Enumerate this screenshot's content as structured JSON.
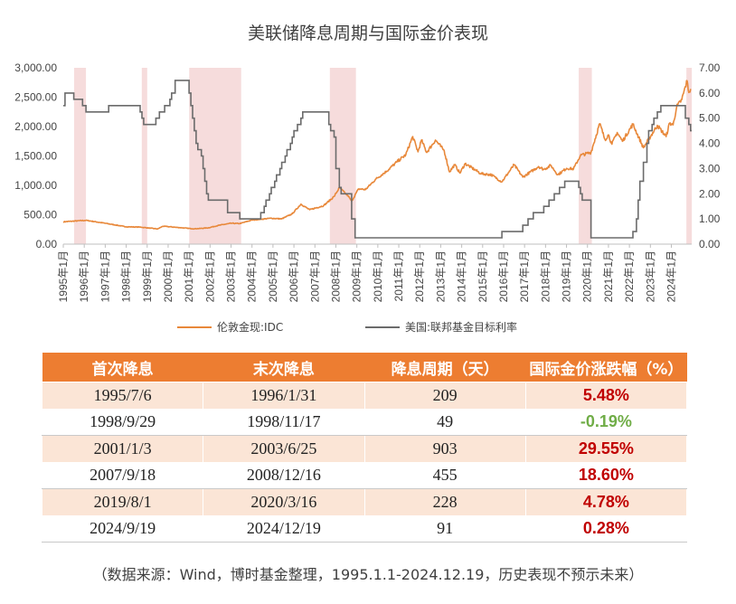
{
  "title": "美联储降息周期与国际金价表现",
  "chart_data": {
    "type": "line",
    "title": "美联储降息周期与国际金价表现",
    "x_range": [
      "1995-01",
      "2024-12"
    ],
    "x_tick_labels": [
      "1995年1月",
      "1996年1月",
      "1997年1月",
      "1998年1月",
      "1999年1月",
      "2000年1月",
      "2001年1月",
      "2002年1月",
      "2003年1月",
      "2004年1月",
      "2005年1月",
      "2006年1月",
      "2007年1月",
      "2008年1月",
      "2009年1月",
      "2010年1月",
      "2011年1月",
      "2012年1月",
      "2013年1月",
      "2014年1月",
      "2015年1月",
      "2016年1月",
      "2017年1月",
      "2018年1月",
      "2019年1月",
      "2020年1月",
      "2021年1月",
      "2022年1月",
      "2023年1月",
      "2024年1月"
    ],
    "left_axis": {
      "ylim": [
        0,
        3000
      ],
      "tick_labels": [
        "3,000.00",
        "2,500.00",
        "2,000.00",
        "1,500.00",
        "1,000.00",
        "500.00",
        "0.00"
      ]
    },
    "right_axis": {
      "ylim": [
        0,
        7
      ],
      "tick_labels": [
        "7.00",
        "6.00",
        "5.00",
        "4.00",
        "3.00",
        "2.00",
        "1.00",
        "0.00"
      ]
    },
    "shaded_periods": [
      [
        "1995-07-06",
        "1996-01-31"
      ],
      [
        "1998-09-29",
        "1998-11-17"
      ],
      [
        "2001-01-03",
        "2003-06-25"
      ],
      [
        "2007-09-18",
        "2008-12-16"
      ],
      [
        "2019-08-01",
        "2020-03-16"
      ],
      [
        "2024-09-19",
        "2024-12-19"
      ]
    ],
    "shade_color": "#f6dcdc",
    "series": [
      {
        "name": "伦敦金现:IDC",
        "axis": "left",
        "color": "#e8883a",
        "points": [
          [
            "1995-01",
            380
          ],
          [
            "1996-02",
            405
          ],
          [
            "1997-01",
            355
          ],
          [
            "1997-07",
            325
          ],
          [
            "1998-01",
            295
          ],
          [
            "1998-09",
            290
          ],
          [
            "1999-07",
            258
          ],
          [
            "1999-10",
            305
          ],
          [
            "2000-06",
            285
          ],
          [
            "2001-04",
            260
          ],
          [
            "2001-12",
            277
          ],
          [
            "2002-06",
            320
          ],
          [
            "2003-01",
            355
          ],
          [
            "2003-06",
            350
          ],
          [
            "2004-01",
            410
          ],
          [
            "2004-12",
            440
          ],
          [
            "2005-06",
            430
          ],
          [
            "2005-12",
            515
          ],
          [
            "2006-05",
            680
          ],
          [
            "2006-10",
            585
          ],
          [
            "2007-06",
            655
          ],
          [
            "2007-12",
            810
          ],
          [
            "2008-03",
            960
          ],
          [
            "2008-08",
            820
          ],
          [
            "2008-10",
            730
          ],
          [
            "2009-02",
            940
          ],
          [
            "2009-06",
            930
          ],
          [
            "2009-12",
            1110
          ],
          [
            "2010-06",
            1240
          ],
          [
            "2010-12",
            1400
          ],
          [
            "2011-05",
            1520
          ],
          [
            "2011-09",
            1830
          ],
          [
            "2011-12",
            1570
          ],
          [
            "2012-02",
            1770
          ],
          [
            "2012-05",
            1560
          ],
          [
            "2012-10",
            1770
          ],
          [
            "2013-03",
            1590
          ],
          [
            "2013-06",
            1230
          ],
          [
            "2013-09",
            1350
          ],
          [
            "2013-12",
            1210
          ],
          [
            "2014-03",
            1370
          ],
          [
            "2014-12",
            1200
          ],
          [
            "2015-06",
            1180
          ],
          [
            "2015-12",
            1060
          ],
          [
            "2016-07",
            1350
          ],
          [
            "2016-12",
            1140
          ],
          [
            "2017-09",
            1320
          ],
          [
            "2017-12",
            1270
          ],
          [
            "2018-04",
            1340
          ],
          [
            "2018-08",
            1180
          ],
          [
            "2019-01",
            1290
          ],
          [
            "2019-05",
            1280
          ],
          [
            "2019-09",
            1510
          ],
          [
            "2020-03",
            1560
          ],
          [
            "2020-08",
            2050
          ],
          [
            "2020-11",
            1780
          ],
          [
            "2021-01",
            1860
          ],
          [
            "2021-03",
            1700
          ],
          [
            "2021-06",
            1900
          ],
          [
            "2021-09",
            1750
          ],
          [
            "2022-03",
            2040
          ],
          [
            "2022-09",
            1640
          ],
          [
            "2023-05",
            2020
          ],
          [
            "2023-10",
            1830
          ],
          [
            "2023-12",
            2060
          ],
          [
            "2024-02",
            2030
          ],
          [
            "2024-04",
            2330
          ],
          [
            "2024-07",
            2460
          ],
          [
            "2024-10",
            2780
          ],
          [
            "2024-11",
            2580
          ],
          [
            "2024-12",
            2640
          ]
        ]
      },
      {
        "name": "美国:联邦基金目标利率",
        "axis": "right",
        "color": "#6b6b6b",
        "step_points": [
          [
            "1995-01",
            5.5
          ],
          [
            "1995-02",
            6.0
          ],
          [
            "1995-07",
            5.75
          ],
          [
            "1995-12",
            5.5
          ],
          [
            "1996-02",
            5.25
          ],
          [
            "1997-03",
            5.5
          ],
          [
            "1998-09",
            5.25
          ],
          [
            "1998-10",
            5.0
          ],
          [
            "1998-11",
            4.75
          ],
          [
            "1999-06",
            5.0
          ],
          [
            "1999-08",
            5.25
          ],
          [
            "1999-11",
            5.5
          ],
          [
            "2000-02",
            5.75
          ],
          [
            "2000-03",
            6.0
          ],
          [
            "2000-05",
            6.5
          ],
          [
            "2001-01",
            6.0
          ],
          [
            "2001-02",
            5.5
          ],
          [
            "2001-03",
            5.0
          ],
          [
            "2001-04",
            4.5
          ],
          [
            "2001-05",
            4.0
          ],
          [
            "2001-06",
            3.75
          ],
          [
            "2001-08",
            3.5
          ],
          [
            "2001-09",
            3.0
          ],
          [
            "2001-10",
            2.5
          ],
          [
            "2001-11",
            2.0
          ],
          [
            "2001-12",
            1.75
          ],
          [
            "2002-11",
            1.25
          ],
          [
            "2003-06",
            1.0
          ],
          [
            "2004-06",
            1.25
          ],
          [
            "2004-08",
            1.5
          ],
          [
            "2004-09",
            1.75
          ],
          [
            "2004-11",
            2.0
          ],
          [
            "2004-12",
            2.25
          ],
          [
            "2005-02",
            2.5
          ],
          [
            "2005-03",
            2.75
          ],
          [
            "2005-05",
            3.0
          ],
          [
            "2005-06",
            3.25
          ],
          [
            "2005-08",
            3.5
          ],
          [
            "2005-09",
            3.75
          ],
          [
            "2005-11",
            4.0
          ],
          [
            "2005-12",
            4.25
          ],
          [
            "2006-01",
            4.5
          ],
          [
            "2006-03",
            4.75
          ],
          [
            "2006-05",
            5.0
          ],
          [
            "2006-06",
            5.25
          ],
          [
            "2007-09",
            4.75
          ],
          [
            "2007-10",
            4.5
          ],
          [
            "2007-12",
            4.25
          ],
          [
            "2008-01",
            3.0
          ],
          [
            "2008-03",
            2.25
          ],
          [
            "2008-04",
            2.0
          ],
          [
            "2008-10",
            1.0
          ],
          [
            "2008-12",
            0.25
          ],
          [
            "2015-12",
            0.5
          ],
          [
            "2016-12",
            0.75
          ],
          [
            "2017-03",
            1.0
          ],
          [
            "2017-06",
            1.25
          ],
          [
            "2017-12",
            1.5
          ],
          [
            "2018-03",
            1.75
          ],
          [
            "2018-06",
            2.0
          ],
          [
            "2018-09",
            2.25
          ],
          [
            "2018-12",
            2.5
          ],
          [
            "2019-08",
            2.25
          ],
          [
            "2019-09",
            2.0
          ],
          [
            "2019-10",
            1.75
          ],
          [
            "2020-03",
            0.25
          ],
          [
            "2022-03",
            0.5
          ],
          [
            "2022-05",
            1.0
          ],
          [
            "2022-06",
            1.75
          ],
          [
            "2022-07",
            2.5
          ],
          [
            "2022-09",
            3.25
          ],
          [
            "2022-11",
            4.0
          ],
          [
            "2022-12",
            4.5
          ],
          [
            "2023-02",
            4.75
          ],
          [
            "2023-03",
            5.0
          ],
          [
            "2023-05",
            5.25
          ],
          [
            "2023-07",
            5.5
          ],
          [
            "2024-09",
            5.0
          ],
          [
            "2024-11",
            4.75
          ],
          [
            "2024-12",
            4.5
          ]
        ]
      }
    ],
    "legend_position": "bottom"
  },
  "table": {
    "headers": [
      "首次降息",
      "末次降息",
      "降息周期（天）",
      "国际金价涨跌幅（%）"
    ],
    "rows": [
      {
        "first": "1995/7/6",
        "last": "1996/1/31",
        "days": "209",
        "change": "5.48%",
        "sign": "pos"
      },
      {
        "first": "1998/9/29",
        "last": "1998/11/17",
        "days": "49",
        "change": "-0.19%",
        "sign": "neg"
      },
      {
        "first": "2001/1/3",
        "last": "2003/6/25",
        "days": "903",
        "change": "29.55%",
        "sign": "pos"
      },
      {
        "first": "2007/9/18",
        "last": "2008/12/16",
        "days": "455",
        "change": "18.60%",
        "sign": "pos"
      },
      {
        "first": "2019/8/1",
        "last": "2020/3/16",
        "days": "228",
        "change": "4.78%",
        "sign": "pos"
      },
      {
        "first": "2024/9/19",
        "last": "2024/12/19",
        "days": "91",
        "change": "0.28%",
        "sign": "pos"
      }
    ]
  },
  "source_note": "（数据来源：Wind，博时基金整理，1995.1.1-2024.12.19，历史表现不预示未来）"
}
